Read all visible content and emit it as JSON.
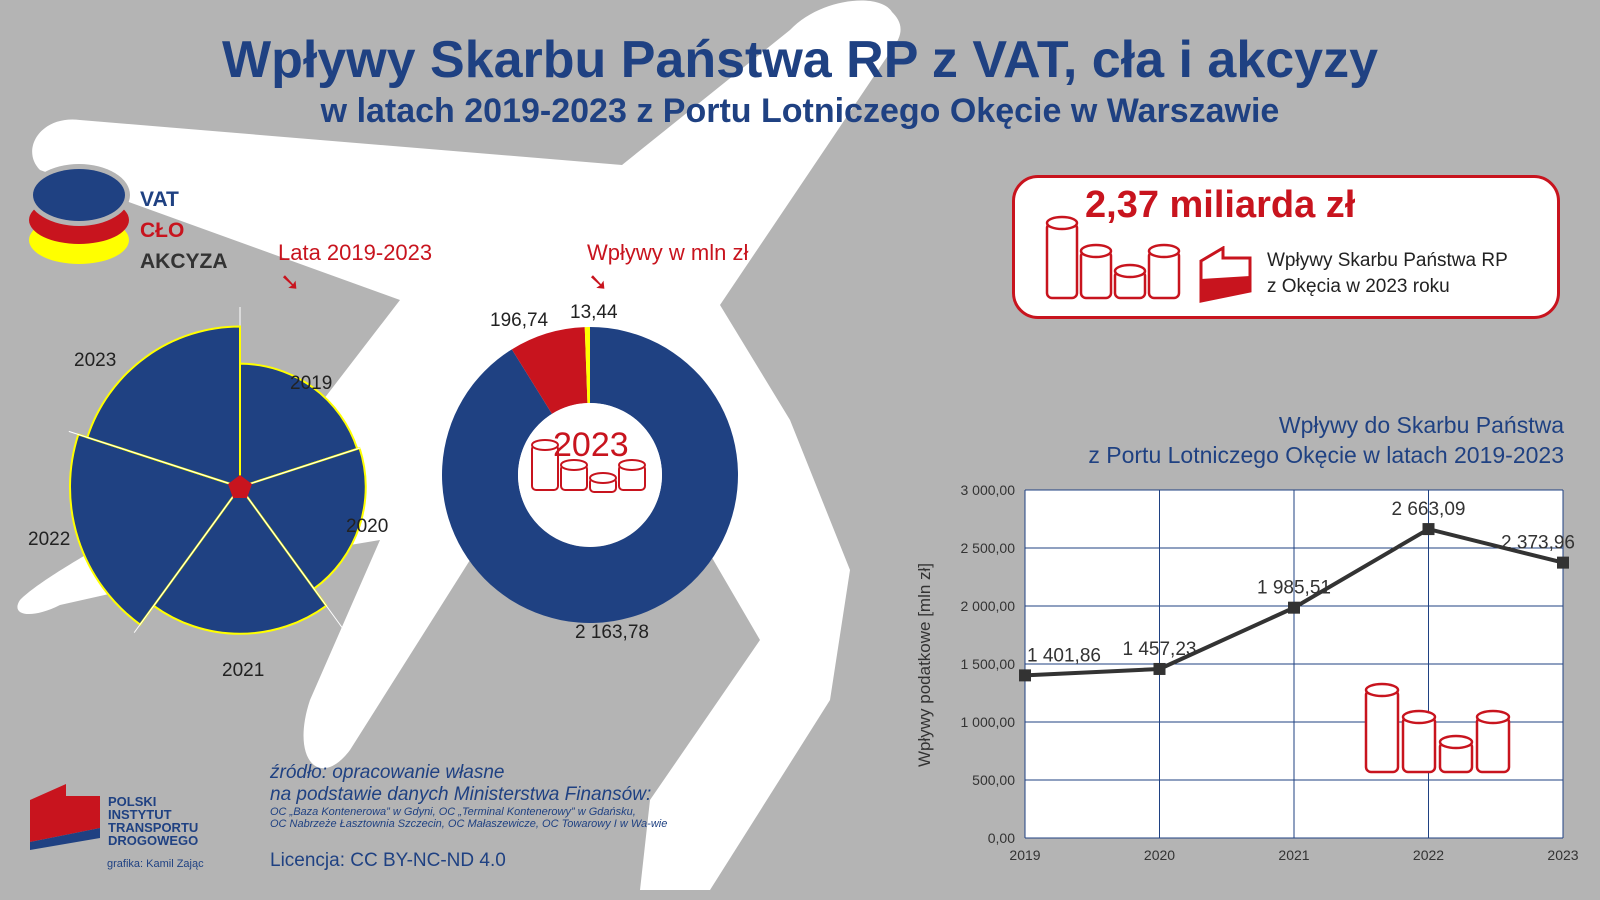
{
  "title": "Wpływy Skarbu Państwa RP z VAT, cła i akcyzy",
  "subtitle": "w latach 2019-2023 z Portu Lotniczego Okęcie w Warszawie",
  "legend": {
    "vat": "VAT",
    "clo": "CŁO",
    "akcyza": "AKCYZA"
  },
  "rose_note": "Lata 2019-2023",
  "donut_note": "Wpływy w mln zł",
  "donut_center_year": "2023",
  "total_box": {
    "amount": "2,37 miliarda zł",
    "desc_line1": "Wpływy Skarbu Państwa RP",
    "desc_line2": "z Okęcia w 2023 roku"
  },
  "line_title_1": "Wpływy do Skarbu Państwa",
  "line_title_2": "z Portu Lotniczego Okęcie w latach 2019-2023",
  "source_line1": "źródło: opracowanie własne",
  "source_line2": "na podstawie danych Ministerstwa Finansów:",
  "source_line3": "OC „Baza Kontenerowa” w Gdyni, OC „Terminal Kontenerowy” w Gdańsku,",
  "source_line4": "OC Nabrzeże Łasztownia Szczecin, OC Małaszewicze, OC Towarowy I w Wa-wie",
  "license": "Licencja: CC BY-NC-ND 4.0",
  "logo": {
    "line1": "POLSKI",
    "line2": "INSTYTUT",
    "line3": "TRANSPORTU",
    "line4": "DROGOWEGO",
    "credit": "grafika: Kamil Zając"
  },
  "colors": {
    "vat": "#1f4182",
    "clo": "#c8141e",
    "akcyza": "#ffff00",
    "line": "#333333"
  },
  "chart_data": [
    {
      "type": "pie",
      "variant": "polar-area",
      "categories": [
        "2019",
        "2020",
        "2021",
        "2022",
        "2023"
      ],
      "values": [
        1401.86,
        1457.23,
        1985.51,
        2663.09,
        2373.96
      ]
    },
    {
      "type": "pie",
      "variant": "donut",
      "categories": [
        "VAT",
        "CŁO",
        "AKCYZA"
      ],
      "values": [
        2163.78,
        196.74,
        13.44
      ],
      "labels": [
        "2 163,78",
        "196,74",
        "13,44"
      ]
    },
    {
      "type": "line",
      "x": [
        "2019",
        "2020",
        "2021",
        "2022",
        "2023"
      ],
      "y": [
        1401.86,
        1457.23,
        1985.51,
        2663.09,
        2373.96
      ],
      "labels": [
        "1 401,86",
        "1 457,23",
        "1 985,51",
        "2 663,09",
        "2 373,96"
      ],
      "ylabel": "Wpływy podatkowe [mln zł]",
      "ylim": [
        0,
        3000
      ],
      "yticks": [
        "0,00",
        "500,00",
        "1 000,00",
        "1 500,00",
        "2 000,00",
        "2 500,00",
        "3 000,00"
      ],
      "grid": true
    }
  ]
}
